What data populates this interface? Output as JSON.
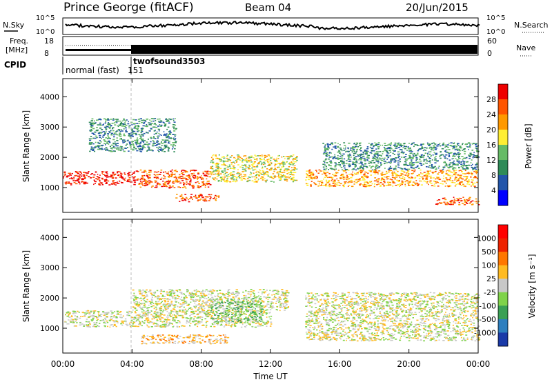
{
  "header": {
    "station": "Prince George (fitACF)",
    "beam": "Beam 04",
    "date": "20/Jun/2015"
  },
  "status_panels": {
    "nsky_label": "N.Sky",
    "nsearch_label": "N.Search",
    "freq_label_line1": "Freq.",
    "freq_label_line2": "[MHz]",
    "nave_label": "Nave",
    "cpid_label": "CPID",
    "noise_ticks_left": [
      "10^5",
      "10^0"
    ],
    "noise_ticks_right": [
      "10^5",
      "10^0"
    ],
    "freq_ticks": [
      "18",
      "8"
    ],
    "nave_ticks": [
      "60",
      "0"
    ],
    "cpid_segments": [
      {
        "name": "normal (fast)",
        "id": "151"
      },
      {
        "name": "twofsound",
        "id": "3503"
      }
    ]
  },
  "chart_data": [
    {
      "type": "heatmap",
      "title": "",
      "xlabel": "",
      "ylabel": "Slant Range [km]",
      "x_range_hours": [
        0,
        24
      ],
      "y_range_km": [
        180,
        4600
      ],
      "yticks": [
        "1000",
        "2000",
        "3000",
        "4000"
      ],
      "colorbar": {
        "label": "Power [dB]",
        "ticks": [
          "4",
          "8",
          "12",
          "16",
          "20",
          "24",
          "28"
        ],
        "colors": [
          "#0000ff",
          "#2255aa",
          "#2e8b57",
          "#66bb66",
          "#ffee33",
          "#ff9900",
          "#ff5500",
          "#ee0000"
        ]
      },
      "echo_regions": [
        {
          "t0": 0.0,
          "t1": 4.2,
          "r0": 1100,
          "r1": 1550,
          "level": 7
        },
        {
          "t0": 4.2,
          "t1": 8.5,
          "r0": 1000,
          "r1": 1600,
          "level": 6
        },
        {
          "t0": 8.5,
          "t1": 13.5,
          "r0": 1200,
          "r1": 2100,
          "level": 4
        },
        {
          "t0": 14.0,
          "t1": 24.0,
          "r0": 1050,
          "r1": 1600,
          "level": 5
        },
        {
          "t0": 6.5,
          "t1": 9.0,
          "r0": 550,
          "r1": 800,
          "level": 6
        },
        {
          "t0": 21.5,
          "t1": 24.0,
          "r0": 450,
          "r1": 700,
          "level": 6
        },
        {
          "t0": 1.5,
          "t1": 6.5,
          "r0": 2200,
          "r1": 3300,
          "level": 2
        },
        {
          "t0": 15.0,
          "t1": 24.0,
          "r0": 1600,
          "r1": 2500,
          "level": 2
        }
      ]
    },
    {
      "type": "heatmap",
      "title": "",
      "xlabel": "Time UT",
      "ylabel": "Slant Range [km]",
      "x_range_hours": [
        0,
        24
      ],
      "y_range_km": [
        180,
        4600
      ],
      "yticks": [
        "1000",
        "2000",
        "3000",
        "4000"
      ],
      "xticks": [
        "00:00",
        "04:00",
        "08:00",
        "12:00",
        "16:00",
        "20:00",
        "00:00"
      ],
      "colorbar": {
        "label": "Velocity [m s⁻¹]",
        "ticks": [
          "1000",
          "500",
          "100",
          "25",
          "-25",
          "-100",
          "-500",
          "-1000"
        ],
        "colors": [
          "#1a3aa8",
          "#2d7fbf",
          "#3aa055",
          "#7fd34a",
          "#c8c8c8",
          "#ffbb22",
          "#ff7700",
          "#ee2200",
          "#ff0000"
        ]
      },
      "echo_regions": [
        {
          "t0": 0.0,
          "t1": 12.0,
          "r0": 1050,
          "r1": 1600,
          "level": 4
        },
        {
          "t0": 4.0,
          "t1": 13.0,
          "r0": 1600,
          "r1": 2300,
          "level": 4
        },
        {
          "t0": 8.5,
          "t1": 11.5,
          "r0": 1200,
          "r1": 2000,
          "level": 3
        },
        {
          "t0": 14.0,
          "t1": 24.0,
          "r0": 600,
          "r1": 2200,
          "level": 4
        },
        {
          "t0": 4.5,
          "t1": 9.5,
          "r0": 500,
          "r1": 800,
          "level": 5
        }
      ]
    }
  ]
}
